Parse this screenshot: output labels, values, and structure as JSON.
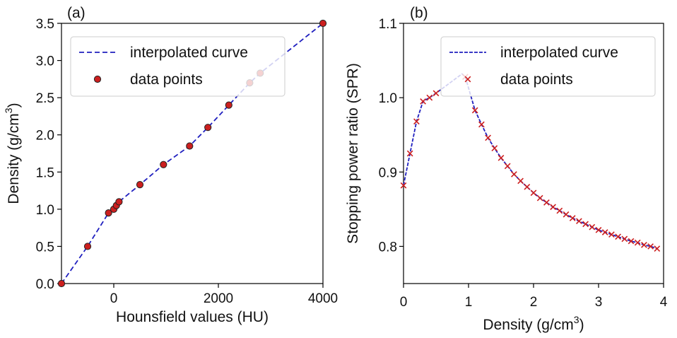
{
  "chart_data": [
    {
      "type": "line",
      "panel_label": "(a)",
      "xlabel": "Hounsfield values (HU)",
      "ylabel_main": "Density (g/cm",
      "ylabel_sup": "3",
      "ylabel_end": ")",
      "xlim": [
        -1000,
        4000
      ],
      "ylim": [
        0,
        3.5
      ],
      "xticks": [
        0,
        2000,
        4000
      ],
      "xtick_labels": [
        "0",
        "2000",
        "4000"
      ],
      "yticks": [
        0.0,
        0.5,
        1.0,
        1.5,
        2.0,
        2.5,
        3.0,
        3.5
      ],
      "ytick_labels": [
        "0.0",
        "0.5",
        "1.0",
        "1.5",
        "2.0",
        "2.5",
        "3.0",
        "3.5"
      ],
      "legend_position": "top-left",
      "series": [
        {
          "name": "interpolated curve",
          "style": "dashed-line",
          "color": "#1f1fbf",
          "x": [
            -1000,
            -500,
            -100,
            0,
            50,
            100,
            500,
            950,
            1450,
            1800,
            2200,
            2600,
            2800,
            4000
          ],
          "y": [
            0.0,
            0.5,
            0.95,
            1.0,
            1.05,
            1.1,
            1.33,
            1.6,
            1.85,
            2.1,
            2.4,
            2.7,
            2.83,
            3.5
          ]
        },
        {
          "name": "data points",
          "style": "circle-marker",
          "color": "#cc1f1f",
          "x": [
            -1000,
            -500,
            -100,
            0,
            50,
            100,
            500,
            950,
            1450,
            1800,
            2200,
            2600,
            2800,
            4000
          ],
          "y": [
            0.0,
            0.5,
            0.95,
            1.0,
            1.05,
            1.1,
            1.33,
            1.6,
            1.85,
            2.1,
            2.4,
            2.7,
            2.83,
            3.5
          ]
        }
      ]
    },
    {
      "type": "line",
      "panel_label": "(b)",
      "xlabel_main": "Density (g/cm",
      "xlabel_sup": "3",
      "xlabel_end": ")",
      "ylabel": "Stopping power ratio (SPR)",
      "xlim": [
        0,
        4
      ],
      "ylim": [
        0.75,
        1.1
      ],
      "xticks": [
        0,
        1,
        2,
        3,
        4
      ],
      "xtick_labels": [
        "0",
        "1",
        "2",
        "3",
        "4"
      ],
      "yticks": [
        0.8,
        0.9,
        1.0,
        1.1
      ],
      "ytick_labels": [
        "0.8",
        "0.9",
        "1.0",
        "1.1"
      ],
      "legend_position": "top-right",
      "series": [
        {
          "name": "interpolated curve",
          "style": "dashed-line",
          "color": "#1f1fbf",
          "x": [
            0.0,
            0.1,
            0.2,
            0.3,
            0.4,
            0.5,
            0.9,
            0.95,
            1.1,
            1.2,
            1.3,
            1.4,
            1.5,
            1.6,
            1.7,
            1.8,
            1.9,
            2.0,
            2.1,
            2.2,
            2.3,
            2.4,
            2.5,
            2.6,
            2.7,
            2.8,
            2.9,
            3.0,
            3.1,
            3.2,
            3.3,
            3.4,
            3.5,
            3.6,
            3.7,
            3.8,
            3.9
          ],
          "y": [
            0.882,
            0.925,
            0.968,
            0.995,
            1.0,
            1.006,
            1.032,
            1.028,
            0.983,
            0.964,
            0.946,
            0.932,
            0.919,
            0.908,
            0.897,
            0.888,
            0.88,
            0.872,
            0.865,
            0.859,
            0.853,
            0.848,
            0.843,
            0.838,
            0.834,
            0.83,
            0.826,
            0.822,
            0.819,
            0.816,
            0.813,
            0.81,
            0.807,
            0.805,
            0.802,
            0.8,
            0.797
          ]
        },
        {
          "name": "data points",
          "style": "x-marker",
          "color": "#cc1f1f",
          "x": [
            0.0,
            0.1,
            0.2,
            0.3,
            0.4,
            0.5,
            0.95,
            1.1,
            1.2,
            1.3,
            1.4,
            1.5,
            1.6,
            1.7,
            1.8,
            1.9,
            2.0,
            2.1,
            2.2,
            2.3,
            2.4,
            2.5,
            2.6,
            2.7,
            2.8,
            2.9,
            3.0,
            3.1,
            3.2,
            3.3,
            3.4,
            3.5,
            3.6,
            3.7,
            3.8,
            3.9
          ],
          "y": [
            0.882,
            0.925,
            0.968,
            0.995,
            1.0,
            1.006,
            1.028,
            0.983,
            0.964,
            0.946,
            0.932,
            0.919,
            0.908,
            0.897,
            0.888,
            0.88,
            0.872,
            0.865,
            0.859,
            0.853,
            0.848,
            0.843,
            0.838,
            0.834,
            0.83,
            0.826,
            0.822,
            0.819,
            0.816,
            0.813,
            0.81,
            0.807,
            0.805,
            0.802,
            0.8,
            0.797
          ]
        }
      ]
    }
  ]
}
